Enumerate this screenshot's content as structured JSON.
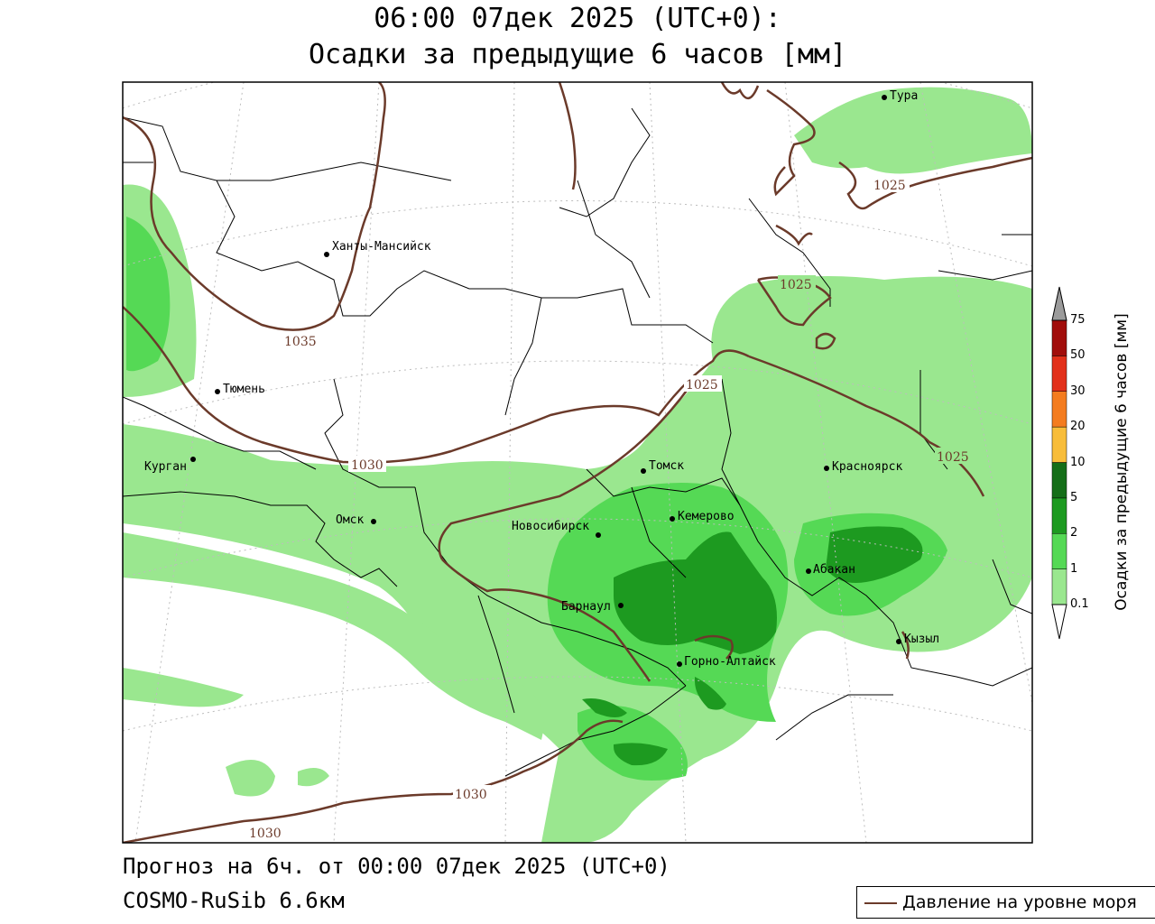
{
  "header": {
    "title_line1": "06:00 07дек 2025 (UTC+0):",
    "title_line2": "Осадки за предыдущие 6 часов [мм]"
  },
  "footer": {
    "forecast": "Прогноз на 6ч. от 00:00 07дек 2025 (UTC+0)",
    "model": "COSMO-RuSib 6.6км"
  },
  "legend": {
    "pressure_label": "Давление на уровне моря",
    "pressure_color": "#6b3a2a"
  },
  "colorbar": {
    "title": "Осадки за предыдущие 6 часов [мм]",
    "levels": [
      "0.1",
      "1",
      "2",
      "5",
      "10",
      "20",
      "30",
      "50",
      "75"
    ],
    "colors": [
      "#9ae78f",
      "#55d955",
      "#1d9a20",
      "#156e18",
      "#f8bd3a",
      "#f47c1f",
      "#e2301a",
      "#a10d0b"
    ],
    "over_color": "#9b9b9b"
  },
  "cities": [
    {
      "name": "Тура"
    },
    {
      "name": "Ханты-Мансийск"
    },
    {
      "name": "Тюмень"
    },
    {
      "name": "Курган"
    },
    {
      "name": "Омск"
    },
    {
      "name": "Томск"
    },
    {
      "name": "Новосибирск"
    },
    {
      "name": "Кемерово"
    },
    {
      "name": "Красноярск"
    },
    {
      "name": "Абакан"
    },
    {
      "name": "Барнаул"
    },
    {
      "name": "Горно-Алтайск"
    },
    {
      "name": "Кызыл"
    }
  ],
  "isobar_labels": [
    "1035",
    "1030",
    "1025",
    "1025",
    "1025",
    "1025",
    "1030",
    "1030"
  ]
}
